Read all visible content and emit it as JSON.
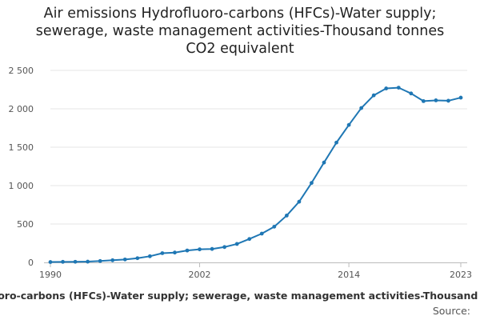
{
  "chart_data": {
    "type": "line",
    "title_lines": [
      "Air emissions Hydrofluoro-carbons (HFCs)-Water supply;",
      "sewerage, waste management activities-Thousand tonnes",
      "CO2 equivalent"
    ],
    "x_ticks": [
      "1990",
      "2002",
      "2014",
      "2023"
    ],
    "y_ticks": [
      "0",
      "500",
      "1 000",
      "1 500",
      "2 000",
      "2 500"
    ],
    "ylim": [
      0,
      2500
    ],
    "xlim": [
      1990,
      2023
    ],
    "grid": true,
    "series": [
      {
        "name": "Air emissions Hydrofluoro-carbons (HFCs)-Water supply; sewerage, waste management activities-Thousand tonnes CO2 equivalent",
        "color": "#1f77b4",
        "x": [
          1990,
          1991,
          1992,
          1993,
          1994,
          1995,
          1996,
          1997,
          1998,
          1999,
          2000,
          2001,
          2002,
          2003,
          2004,
          2005,
          2006,
          2007,
          2008,
          2009,
          2010,
          2011,
          2012,
          2013,
          2014,
          2015,
          2016,
          2017,
          2018,
          2019,
          2020,
          2021,
          2022,
          2023
        ],
        "values": [
          5,
          7,
          8,
          10,
          18,
          28,
          38,
          55,
          80,
          120,
          128,
          155,
          170,
          175,
          200,
          240,
          305,
          375,
          465,
          610,
          790,
          1035,
          1300,
          1560,
          1790,
          2010,
          2175,
          2265,
          2275,
          2200,
          2100,
          2110,
          2105,
          2145
        ]
      }
    ],
    "source_label": "Source:"
  }
}
